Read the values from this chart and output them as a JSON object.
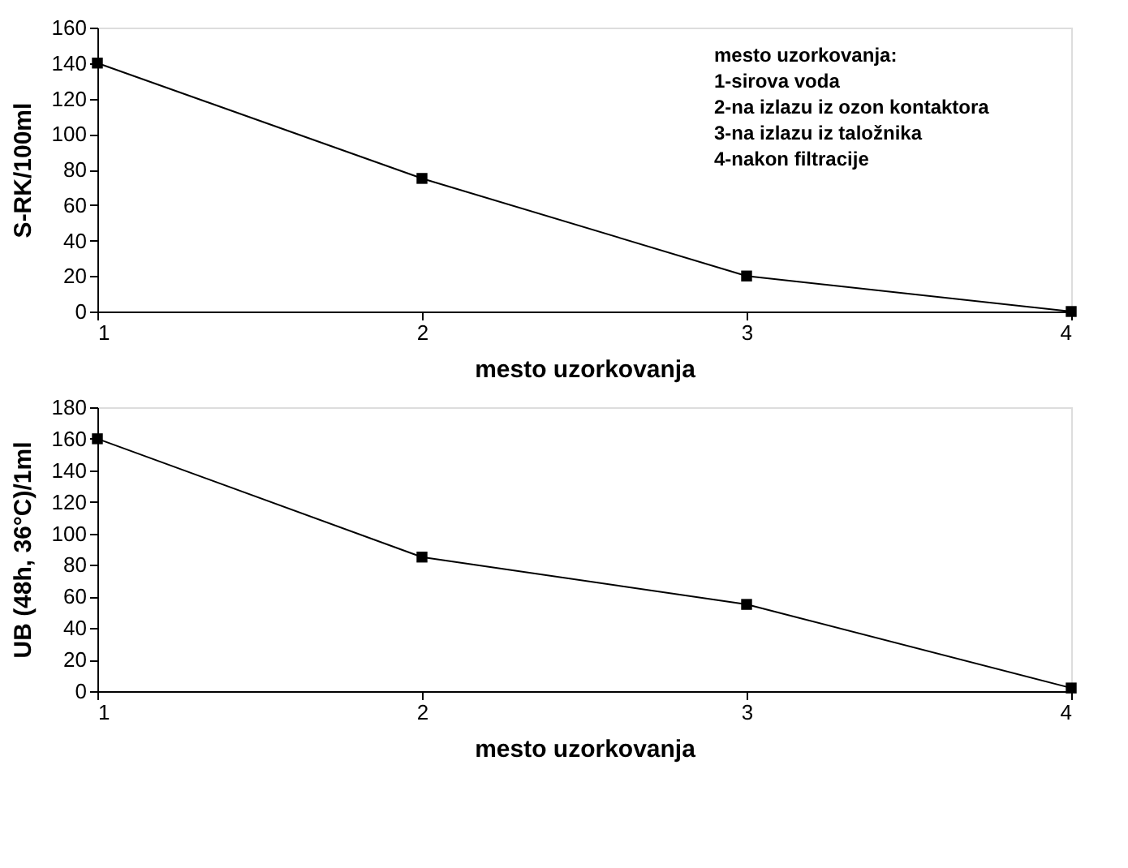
{
  "chart_data": [
    {
      "type": "line",
      "x": [
        1,
        2,
        3,
        4
      ],
      "values": [
        140,
        75,
        20,
        0
      ],
      "color": "#000000",
      "marker": "square",
      "line_style": "solid",
      "grid": false,
      "xlabel": "mesto uzorkovanja",
      "ylabel": "S-RK/100ml",
      "xlim": [
        1,
        4
      ],
      "xticks": [
        1,
        2,
        3,
        4
      ],
      "ylim": [
        0,
        160
      ],
      "yticks": [
        0,
        20,
        40,
        60,
        80,
        100,
        120,
        140,
        160
      ],
      "annotations": [
        "mesto uzorkovanja:",
        "1-sirova voda",
        "2-na izlazu iz ozon kontaktora",
        "3-na izlazu iz taložnika",
        "4-nakon filtracije"
      ]
    },
    {
      "type": "line",
      "x": [
        1,
        2,
        3,
        4
      ],
      "values": [
        160,
        85,
        55,
        2
      ],
      "color": "#000000",
      "marker": "square",
      "line_style": "solid",
      "grid": false,
      "xlabel": "mesto uzorkovanja",
      "ylabel": "UB (48h, 36°C)/1ml",
      "xlim": [
        1,
        4
      ],
      "xticks": [
        1,
        2,
        3,
        4
      ],
      "ylim": [
        0,
        180
      ],
      "yticks": [
        0,
        20,
        40,
        60,
        80,
        100,
        120,
        140,
        160,
        180
      ]
    }
  ]
}
